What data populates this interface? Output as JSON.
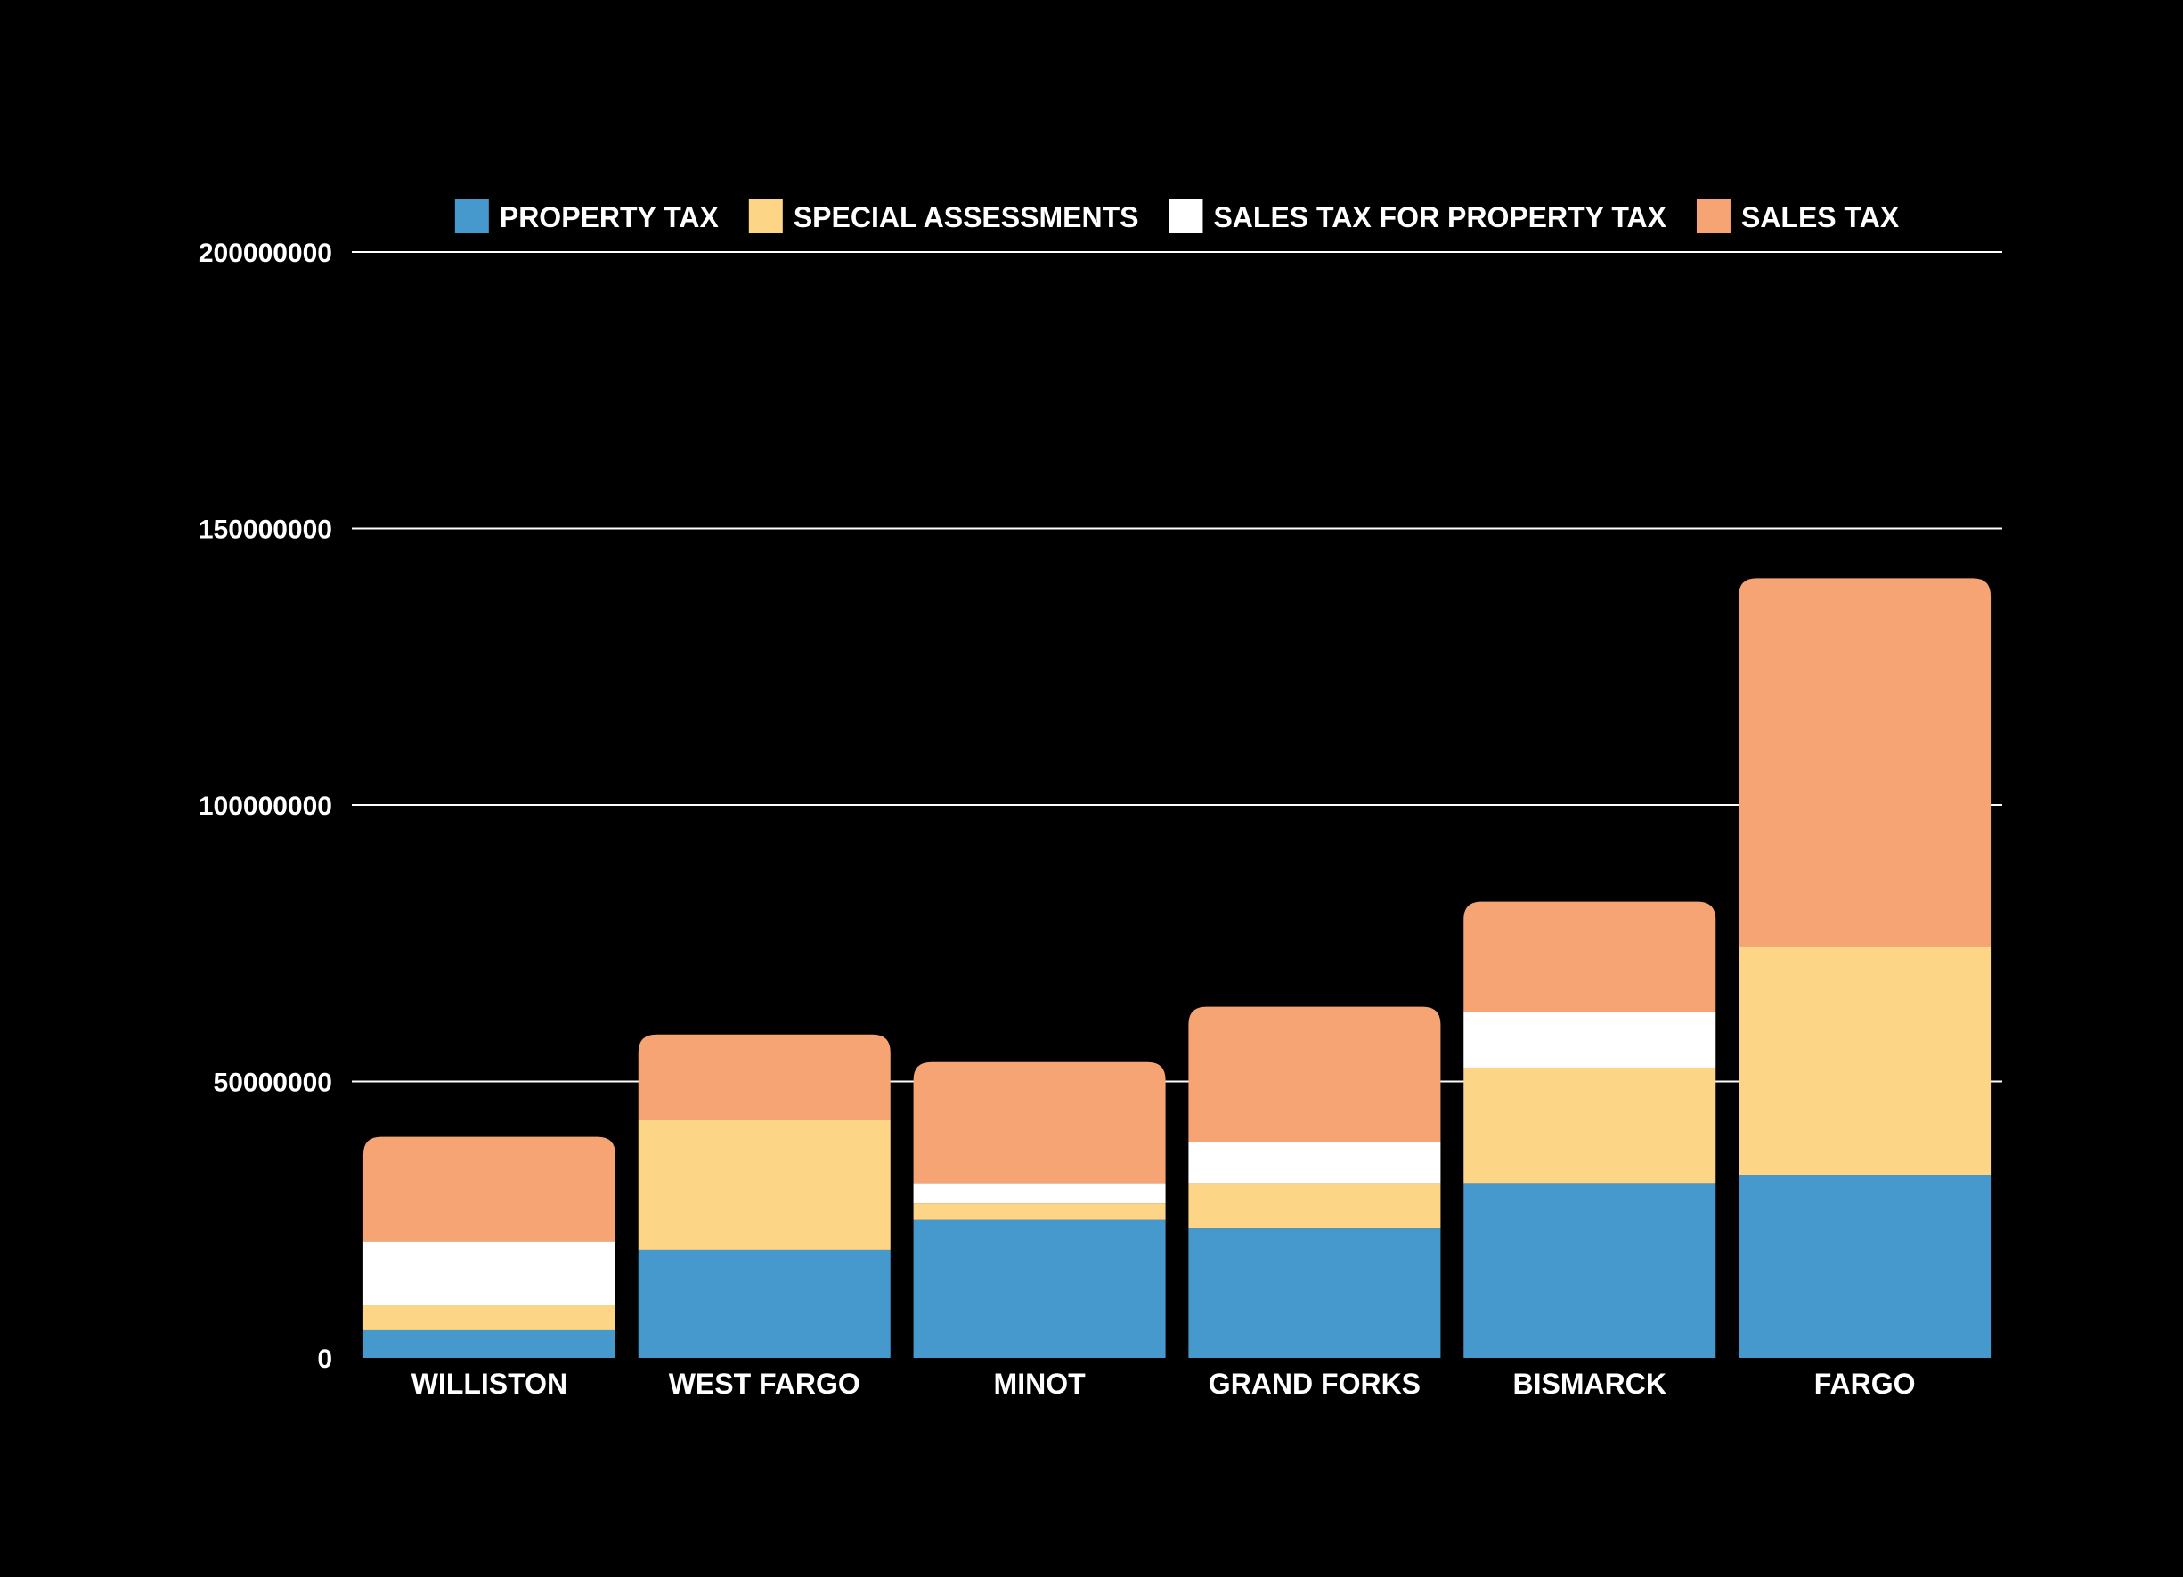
{
  "chart_data": {
    "type": "bar",
    "stacked": true,
    "title": "",
    "xlabel": "",
    "ylabel": "",
    "ylim": [
      0,
      200000000
    ],
    "yticks": [
      0,
      50000000,
      100000000,
      150000000,
      200000000
    ],
    "ytick_labels": [
      "0",
      "50000000",
      "100000000",
      "150000000",
      "200000000"
    ],
    "grid": true,
    "legend_position": "top",
    "categories": [
      "WILLISTON",
      "WEST FARGO",
      "MINOT",
      "GRAND FORKS",
      "BISMARCK",
      "FARGO"
    ],
    "series": [
      {
        "name": "PROPERTY TAX",
        "color": "#4699CC",
        "values": [
          5000000,
          19500000,
          25000000,
          23500000,
          31500000,
          33000000
        ]
      },
      {
        "name": "SPECIAL ASSESSMENTS",
        "color": "#FDD587",
        "values": [
          4500000,
          23500000,
          3000000,
          8000000,
          21000000,
          41500000
        ]
      },
      {
        "name": "SALES TAX FOR PROPERTY TAX",
        "color": "#FFFFFF",
        "values": [
          11500000,
          0,
          3500000,
          7500000,
          10000000,
          0
        ]
      },
      {
        "name": "SALES TAX",
        "color": "#F7A474",
        "values": [
          19000000,
          15500000,
          22000000,
          24500000,
          20000000,
          66500000
        ]
      }
    ]
  }
}
